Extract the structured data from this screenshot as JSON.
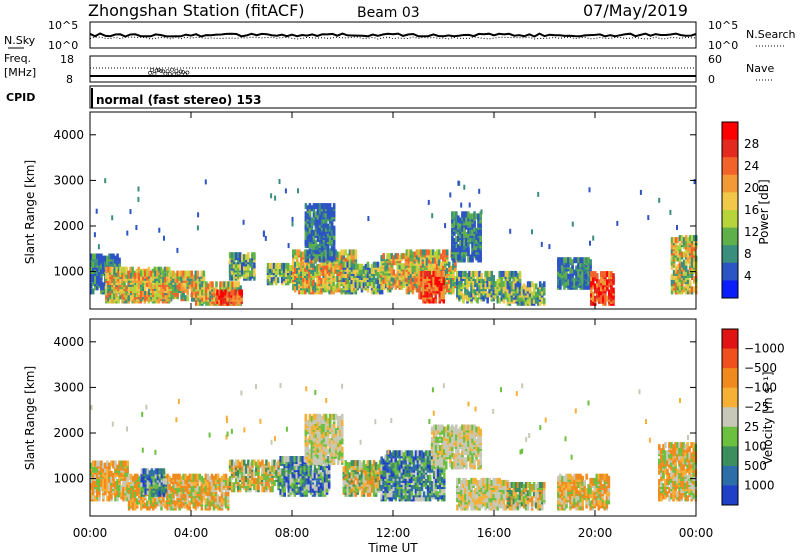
{
  "header": {
    "station_title": "Zhongshan Station (fitACF)",
    "beam_label": "Beam 03",
    "date_label": "07/May/2019"
  },
  "noise_panel": {
    "left_label": "N.Sky",
    "right_label": "N.Search",
    "left_ticks": [
      "10^5",
      "10^0"
    ],
    "right_ticks": [
      "10^5",
      "10^0"
    ]
  },
  "freq_panel": {
    "left_label_1": "Freq.",
    "left_label_2": "[MHz]",
    "left_ticks": [
      "18",
      "8"
    ],
    "right_label": "Nave",
    "right_ticks": [
      "60",
      "0"
    ]
  },
  "cpid_panel": {
    "label": "CPID",
    "mode_text": "normal (fast stereo) 153"
  },
  "x_axis": {
    "title": "Time UT",
    "ticks": [
      "00:00",
      "04:00",
      "08:00",
      "12:00",
      "16:00",
      "20:00",
      "00:00"
    ]
  },
  "chart_data": [
    {
      "type": "heatmap",
      "title": "",
      "xlabel": "Time UT",
      "ylabel": "Slant Range [km]",
      "xlim_hours": [
        0,
        24
      ],
      "ylim_km": [
        180,
        4500
      ],
      "y_ticks": [
        "1000",
        "2000",
        "3000",
        "4000"
      ],
      "y_tick_values": [
        1000,
        2000,
        3000,
        4000
      ],
      "colorbar": {
        "label": "Power [dB]",
        "ticks": [
          "4",
          "8",
          "12",
          "16",
          "20",
          "24",
          "28"
        ],
        "colors": [
          "#0a1dfa",
          "#2c54c4",
          "#3a8e7e",
          "#5fb04a",
          "#b7d43b",
          "#f2c84a",
          "#f29a35",
          "#f2632c",
          "#e32a1e",
          "#ff0000"
        ]
      },
      "echo_regions": [
        {
          "t0": 0.0,
          "t1": 1.2,
          "r0": 500,
          "r1": 1300,
          "level": "low"
        },
        {
          "t0": 0.6,
          "t1": 3.2,
          "r0": 300,
          "r1": 1000,
          "level": "high"
        },
        {
          "t0": 1.5,
          "t1": 4.5,
          "r0": 350,
          "r1": 900,
          "level": "high"
        },
        {
          "t0": 4.0,
          "t1": 6.0,
          "r0": 250,
          "r1": 700,
          "level": "high"
        },
        {
          "t0": 5.0,
          "t1": 6.0,
          "r0": 250,
          "r1": 500,
          "level": "peak"
        },
        {
          "t0": 5.5,
          "t1": 6.5,
          "r0": 800,
          "r1": 1300,
          "level": "mid"
        },
        {
          "t0": 7.0,
          "t1": 8.0,
          "r0": 700,
          "r1": 1100,
          "level": "mid"
        },
        {
          "t0": 8.0,
          "t1": 10.5,
          "r0": 500,
          "r1": 1400,
          "level": "high"
        },
        {
          "t0": 8.5,
          "t1": 9.7,
          "r0": 1200,
          "r1": 2400,
          "level": "low"
        },
        {
          "t0": 10.0,
          "t1": 12.0,
          "r0": 500,
          "r1": 1100,
          "level": "mid"
        },
        {
          "t0": 11.5,
          "t1": 13.0,
          "r0": 600,
          "r1": 1300,
          "level": "high"
        },
        {
          "t0": 12.5,
          "t1": 14.5,
          "r0": 500,
          "r1": 1400,
          "level": "high"
        },
        {
          "t0": 13.0,
          "t1": 14.0,
          "r0": 300,
          "r1": 900,
          "level": "peak"
        },
        {
          "t0": 14.3,
          "t1": 15.5,
          "r0": 1200,
          "r1": 2200,
          "level": "low"
        },
        {
          "t0": 14.5,
          "t1": 17.0,
          "r0": 300,
          "r1": 900,
          "level": "mid"
        },
        {
          "t0": 16.5,
          "t1": 18.0,
          "r0": 250,
          "r1": 700,
          "level": "mid"
        },
        {
          "t0": 18.5,
          "t1": 19.8,
          "r0": 600,
          "r1": 1200,
          "level": "low"
        },
        {
          "t0": 19.8,
          "t1": 20.7,
          "r0": 250,
          "r1": 900,
          "level": "peak"
        },
        {
          "t0": 23.0,
          "t1": 24.0,
          "r0": 500,
          "r1": 1700,
          "level": "high"
        }
      ]
    },
    {
      "type": "heatmap",
      "title": "",
      "xlabel": "Time UT",
      "ylabel": "Slant Range [km]",
      "xlim_hours": [
        0,
        24
      ],
      "ylim_km": [
        180,
        4500
      ],
      "y_ticks": [
        "1000",
        "2000",
        "3000",
        "4000"
      ],
      "y_tick_values": [
        1000,
        2000,
        3000,
        4000
      ],
      "colorbar": {
        "label": "Velocity [m s⁻¹]",
        "ticks": [
          "1000",
          "500",
          "100",
          "25",
          "−25",
          "−100",
          "−500",
          "−1000"
        ],
        "colors": [
          "#2040c8",
          "#2e6ea8",
          "#3c8e5e",
          "#6cc040",
          "#c8c8b8",
          "#f6b036",
          "#f08a1e",
          "#f0501e",
          "#e01414"
        ]
      },
      "echo_regions": [
        {
          "t0": 0.0,
          "t1": 1.5,
          "r0": 500,
          "r1": 1300,
          "level": "neg"
        },
        {
          "t0": 1.5,
          "t1": 5.5,
          "r0": 300,
          "r1": 1000,
          "level": "neg"
        },
        {
          "t0": 2.0,
          "t1": 3.0,
          "r0": 600,
          "r1": 1100,
          "level": "pos"
        },
        {
          "t0": 5.5,
          "t1": 7.5,
          "r0": 700,
          "r1": 1300,
          "level": "mix"
        },
        {
          "t0": 7.5,
          "t1": 9.5,
          "r0": 600,
          "r1": 1400,
          "level": "pos"
        },
        {
          "t0": 8.5,
          "t1": 10.0,
          "r0": 1300,
          "r1": 2300,
          "level": "zero"
        },
        {
          "t0": 10.0,
          "t1": 11.5,
          "r0": 600,
          "r1": 1300,
          "level": "mix"
        },
        {
          "t0": 11.5,
          "t1": 14.0,
          "r0": 500,
          "r1": 1500,
          "level": "pos"
        },
        {
          "t0": 13.5,
          "t1": 15.5,
          "r0": 1200,
          "r1": 2100,
          "level": "zero"
        },
        {
          "t0": 14.5,
          "t1": 16.5,
          "r0": 300,
          "r1": 900,
          "level": "zero"
        },
        {
          "t0": 16.5,
          "t1": 18.0,
          "r0": 300,
          "r1": 800,
          "level": "mix"
        },
        {
          "t0": 18.5,
          "t1": 20.5,
          "r0": 300,
          "r1": 1000,
          "level": "neg"
        },
        {
          "t0": 22.5,
          "t1": 24.0,
          "r0": 500,
          "r1": 1700,
          "level": "neg"
        }
      ]
    }
  ]
}
